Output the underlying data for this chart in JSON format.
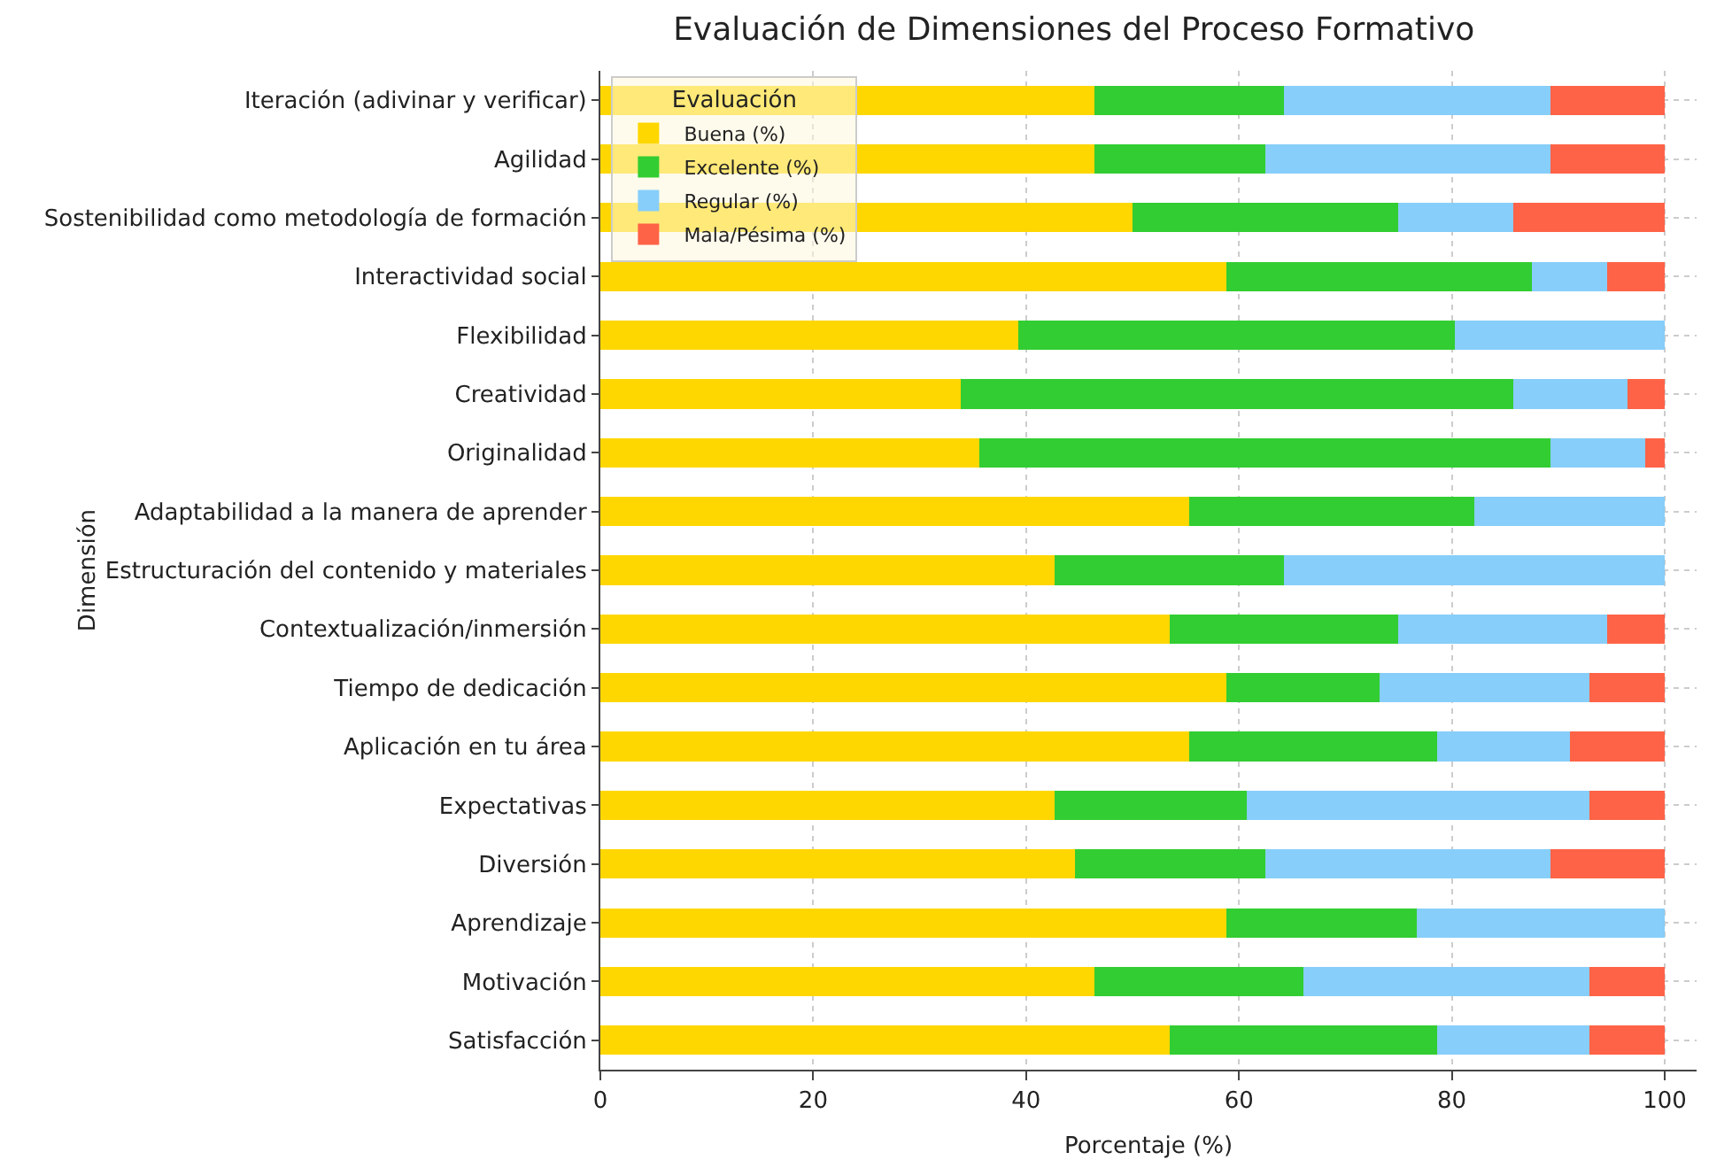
{
  "chart_data": {
    "type": "bar",
    "orientation": "horizontal",
    "stacked": true,
    "title": "Evaluación de Dimensiones del Proceso Formativo",
    "xlabel": "Porcentaje (%)",
    "ylabel": "Dimensión",
    "legend_title": "Evaluación",
    "categories": [
      "Iteración (adivinar y verificar)",
      "Agilidad",
      "Sostenibilidad como metodología de formación",
      "Interactividad social",
      "Flexibilidad",
      "Creatividad",
      "Originalidad",
      "Adaptabilidad a la manera de aprender",
      "Estructuración del contenido y materiales",
      "Contextualización/inmersión",
      "Tiempo de dedicación",
      "Aplicación en tu área",
      "Expectativas",
      "Diversión",
      "Aprendizaje",
      "Motivación",
      "Satisfacción"
    ],
    "series": [
      {
        "name": "Buena (%)",
        "color": "#ffd700",
        "values": [
          46.4,
          46.4,
          50.0,
          58.8,
          39.3,
          33.9,
          35.6,
          55.3,
          42.7,
          53.5,
          58.8,
          55.3,
          42.7,
          44.6,
          58.8,
          46.4,
          53.5
        ]
      },
      {
        "name": "Excelente (%)",
        "color": "#32cd32",
        "values": [
          17.8,
          16.1,
          25.0,
          28.7,
          41.0,
          51.9,
          53.7,
          26.8,
          21.5,
          21.5,
          14.4,
          23.3,
          18.0,
          17.9,
          17.9,
          19.7,
          25.1
        ]
      },
      {
        "name": "Regular (%)",
        "color": "#87cefa",
        "values": [
          25.1,
          26.8,
          10.8,
          7.1,
          19.7,
          10.7,
          8.9,
          17.9,
          35.8,
          19.6,
          19.7,
          12.5,
          32.2,
          26.8,
          23.3,
          26.8,
          14.3
        ]
      },
      {
        "name": "Mala/Pésima (%)",
        "color": "#ff6347",
        "values": [
          10.7,
          10.7,
          14.2,
          5.4,
          0,
          3.5,
          1.8,
          0,
          0,
          5.4,
          7.1,
          8.9,
          7.1,
          10.7,
          0,
          7.1,
          7.1
        ]
      }
    ],
    "xlim": [
      0,
      103
    ],
    "xticks": [
      0,
      20,
      40,
      60,
      80,
      100
    ],
    "grid": true,
    "legend": "top left"
  }
}
